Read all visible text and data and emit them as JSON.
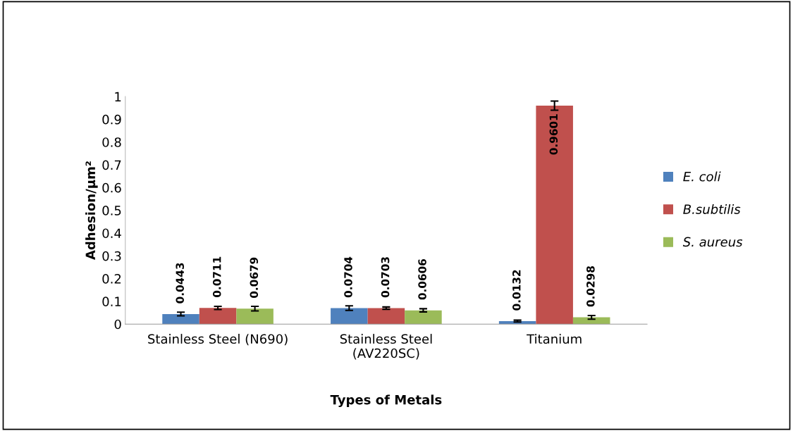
{
  "chart_data": {
    "type": "bar",
    "xlabel": "Types of Metals",
    "ylabel": "Adhesion/μm²",
    "categories": [
      "Stainless Steel (N690)",
      "Stainless Steel\n(AV220SC)",
      "Titanium"
    ],
    "series": [
      {
        "name": "E. coli",
        "color": "#4f81bd",
        "values": [
          0.0443,
          0.0704,
          0.0132
        ],
        "errors": [
          0.008,
          0.01,
          0.004
        ]
      },
      {
        "name": "B.subtilis",
        "color": "#c0504d",
        "values": [
          0.0711,
          0.0703,
          0.9601
        ],
        "errors": [
          0.007,
          0.005,
          0.02
        ]
      },
      {
        "name": "S. aureus",
        "color": "#9bbb59",
        "values": [
          0.0679,
          0.0606,
          0.0298
        ],
        "errors": [
          0.01,
          0.007,
          0.008
        ]
      }
    ],
    "ylim": [
      0,
      1
    ],
    "yticks": [
      0,
      0.1,
      0.2,
      0.3,
      0.4,
      0.5,
      0.6,
      0.7,
      0.8,
      0.9,
      1
    ],
    "data_labels": true,
    "legend": "right",
    "grid": false
  }
}
